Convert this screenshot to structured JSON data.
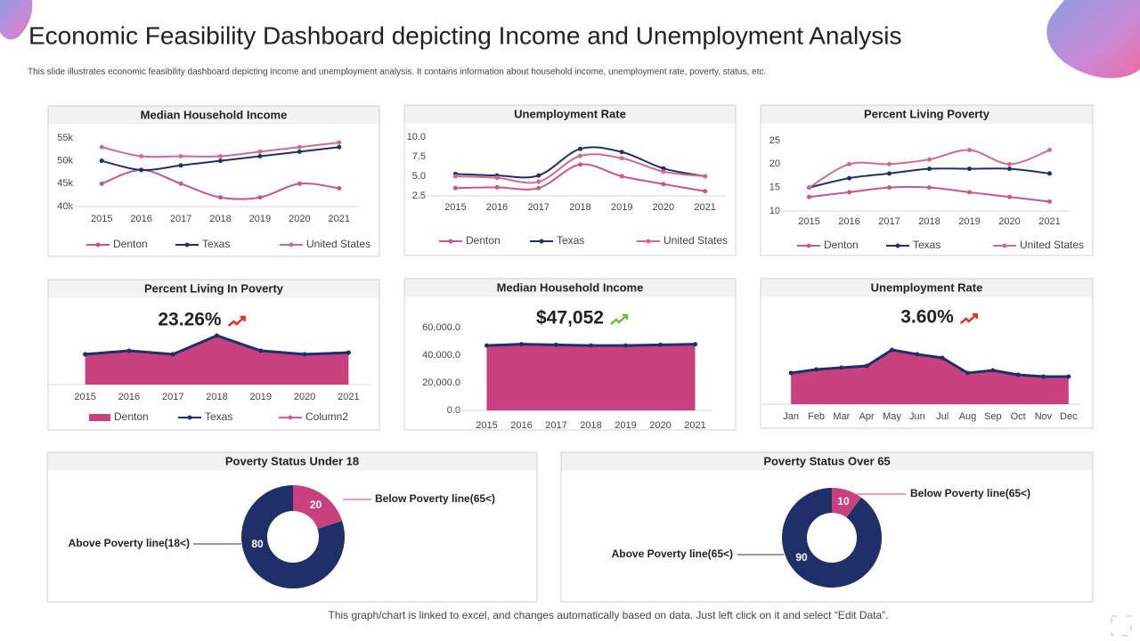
{
  "title": "Economic Feasibility Dashboard depicting Income and Unemployment Analysis",
  "subtitle": "This slide illustrates economic feasibility dashboard depicting income and unemployment analysis. It contains information about household income, unemployment rate, poverty, status, etc.",
  "footer": "This graph/chart is linked to excel,  and changes automatically based on data. Just left click on it and select “Edit Data”.",
  "chart_data": [
    {
      "type": "line",
      "title": "Median Household Income",
      "smooth": true,
      "categories": [
        "2015",
        "2016",
        "2017",
        "2018",
        "2019",
        "2020",
        "2021"
      ],
      "ylim": [
        40000,
        55000
      ],
      "yticks": [
        {
          "value": 40000,
          "label": "40k"
        },
        {
          "value": 45000,
          "label": "45k"
        },
        {
          "value": 50000,
          "label": "50k"
        },
        {
          "value": 55000,
          "label": "55k"
        }
      ],
      "series": [
        {
          "name": "Denton",
          "color": "#c9558a",
          "values": [
            45000,
            48000,
            45000,
            42000,
            42000,
            45000,
            44000
          ]
        },
        {
          "name": "Texas",
          "color": "#1f3068",
          "values": [
            50000,
            48000,
            49000,
            50000,
            51000,
            52000,
            53000
          ]
        },
        {
          "name": "United States",
          "color": "#d06a93",
          "values": [
            53000,
            51000,
            51000,
            51000,
            52000,
            53000,
            54000
          ]
        }
      ]
    },
    {
      "type": "line",
      "title": "Unemployment Rate",
      "smooth": true,
      "categories": [
        "2015",
        "2016",
        "2017",
        "2018",
        "2019",
        "2020",
        "2021"
      ],
      "ylim": [
        2.5,
        10
      ],
      "yticks": [
        2.5,
        {
          "value": 5,
          "label": "5.0"
        },
        7.5,
        {
          "value": 10,
          "label": "10.0"
        }
      ],
      "series": [
        {
          "name": "Denton",
          "color": "#c9558a",
          "values": [
            3.5,
            3.6,
            3.5,
            6.5,
            5.0,
            4.0,
            3.1
          ]
        },
        {
          "name": "Texas",
          "color": "#1f3068",
          "values": [
            5.3,
            5.1,
            5.1,
            8.5,
            8.1,
            6.0,
            5.0
          ]
        },
        {
          "name": "United States",
          "color": "#d06a93",
          "values": [
            5.0,
            4.8,
            4.3,
            7.6,
            7.3,
            5.6,
            5.0
          ]
        }
      ]
    },
    {
      "type": "line",
      "title": "Percent Living Poverty",
      "smooth": true,
      "categories": [
        "2015",
        "2016",
        "2017",
        "2018",
        "2019",
        "2020",
        "2021"
      ],
      "ylim": [
        10,
        25
      ],
      "yticks": [
        10,
        15,
        20,
        25
      ],
      "series": [
        {
          "name": "Denton",
          "color": "#c9558a",
          "values": [
            13,
            14,
            15,
            15,
            14,
            13,
            12
          ]
        },
        {
          "name": "Texas",
          "color": "#1f3068",
          "values": [
            15,
            17,
            18,
            19,
            19,
            19,
            18
          ]
        },
        {
          "name": "United States",
          "color": "#d06a93",
          "values": [
            15,
            20,
            20,
            21,
            23,
            20,
            23
          ]
        }
      ]
    },
    {
      "type": "area",
      "title": "Percent Living In Poverty",
      "headline": "23.26%",
      "categories": [
        "2015",
        "2016",
        "2017",
        "2018",
        "2019",
        "2020",
        "2021"
      ],
      "ylim": [
        0,
        25
      ],
      "series": [
        {
          "name": "Denton",
          "style": "area",
          "color": "#c8407e",
          "values": [
            14.4,
            16.1,
            14.4,
            23.3,
            16.1,
            14.4,
            15.2
          ]
        },
        {
          "name": "Texas",
          "style": "line",
          "color": "#1f3068",
          "values": [
            14.4,
            16.1,
            14.4,
            23.3,
            16.1,
            14.4,
            15.2
          ]
        },
        {
          "name": "Column2",
          "style": "line",
          "color": "#d0609a",
          "values": [
            14.4,
            16.1,
            14.4,
            23.3,
            16.1,
            14.4,
            15.2
          ]
        }
      ]
    },
    {
      "type": "area",
      "title": "Median Household Income",
      "headline": "$47,052",
      "categories": [
        "2015",
        "2016",
        "2017",
        "2018",
        "2019",
        "2020",
        "2021"
      ],
      "ylim": [
        0,
        60000
      ],
      "yticks": [
        {
          "value": 0,
          "label": "0.0"
        },
        {
          "value": 20000,
          "label": "20,000.0"
        },
        {
          "value": 40000,
          "label": "40,000.0"
        },
        {
          "value": 60000,
          "label": "60,000.0"
        }
      ],
      "color": "#c8407e",
      "line_color": "#1f3068",
      "values": [
        47000,
        48000,
        47500,
        47000,
        47000,
        47500,
        48000
      ]
    },
    {
      "type": "area",
      "title": "Unemployment Rate",
      "headline": "3.60%",
      "categories": [
        "Jan",
        "Feb",
        "Mar",
        "Apr",
        "May",
        "Jun",
        "Jul",
        "Aug",
        "Sep",
        "Oct",
        "Nov",
        "Dec"
      ],
      "ylim": [
        0,
        10
      ],
      "color": "#c8407e",
      "line_color": "#1f3068",
      "values": [
        3.5,
        3.9,
        4.1,
        4.3,
        6.1,
        5.6,
        5.2,
        3.5,
        3.8,
        3.3,
        3.1,
        3.1
      ]
    },
    {
      "type": "pie",
      "title": "Poverty Status Under 18",
      "donut": true,
      "categories": [
        "Below Poverty line(65<)",
        "Above Poverty line(18<)"
      ],
      "values": [
        20,
        80
      ],
      "colors": [
        "#c8407e",
        "#1f3068"
      ]
    },
    {
      "type": "pie",
      "title": "Poverty Status Over 65",
      "donut": true,
      "categories": [
        "Below Poverty line(65<)",
        "Above Poverty line(65<)"
      ],
      "values": [
        10,
        90
      ],
      "colors": [
        "#c8407e",
        "#1f3068"
      ]
    }
  ]
}
